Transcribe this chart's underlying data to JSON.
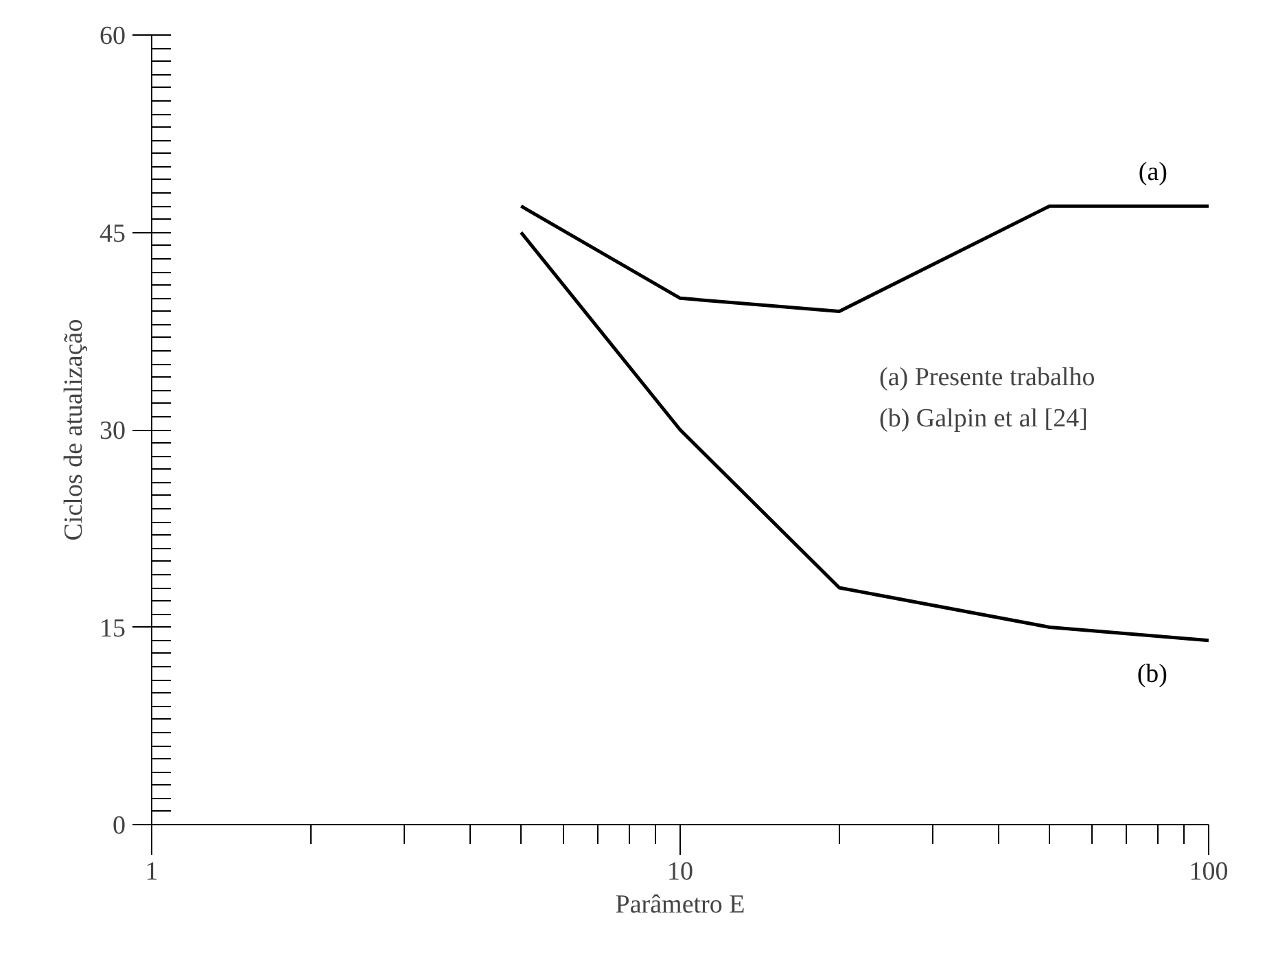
{
  "chart_data": {
    "type": "line",
    "xlabel": "Parâmetro E",
    "ylabel": "Ciclos de atualização",
    "log": "x",
    "xlim": [
      1,
      100
    ],
    "xticks": [
      1,
      10,
      100
    ],
    "ylim": [
      0,
      60
    ],
    "yticks": [
      0,
      15,
      30,
      45,
      60
    ],
    "grid": false,
    "marker": "none",
    "line_style": "solid",
    "annotations": [
      "(a) Presente trabalho",
      "(b) Galpin et al [24]"
    ],
    "series": [
      {
        "name": "(a)",
        "color": "#000000",
        "x": [
          5,
          10,
          20,
          50,
          100
        ],
        "values": [
          47,
          40,
          39,
          47,
          47
        ]
      },
      {
        "name": "(b)",
        "color": "#000000",
        "x": [
          5,
          10,
          20,
          50,
          100
        ],
        "values": [
          45,
          30,
          18,
          15,
          14
        ]
      }
    ]
  }
}
